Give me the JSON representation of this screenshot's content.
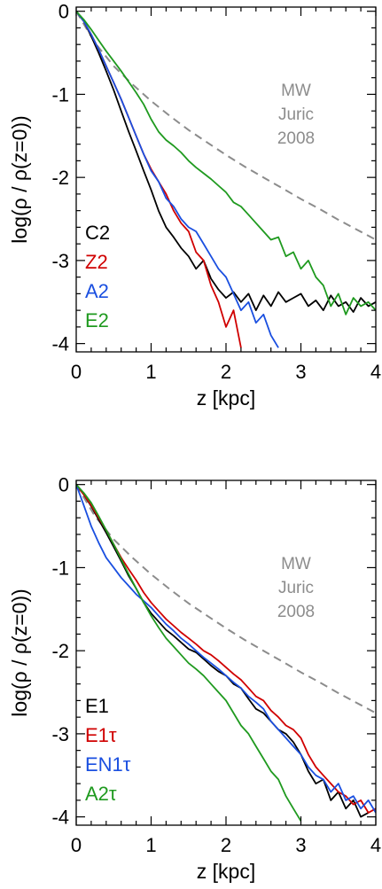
{
  "chart_data": [
    {
      "type": "line",
      "xlabel": "z [kpc]",
      "ylabel": "log(ρ / ρ(z=0))",
      "xlim": [
        0,
        4
      ],
      "ylim": [
        -4.1,
        0.05
      ],
      "xticks": [
        "0",
        "1",
        "2",
        "3",
        "4"
      ],
      "yticks": [
        "0",
        "-1",
        "-2",
        "-3",
        "-4"
      ],
      "annotation": [
        "MW",
        "Juric",
        "2008"
      ],
      "reference": {
        "x": [
          0.0,
          0.25,
          0.5,
          0.75,
          1.0,
          1.25,
          1.5,
          1.75,
          2.0,
          2.25,
          2.5,
          2.75,
          3.0,
          3.25,
          3.5,
          3.75,
          4.0
        ],
        "y": [
          0.0,
          -0.38,
          -0.66,
          -0.88,
          -1.08,
          -1.26,
          -1.43,
          -1.58,
          -1.73,
          -1.87,
          -2.0,
          -2.13,
          -2.26,
          -2.38,
          -2.51,
          -2.63,
          -2.75
        ]
      },
      "series": [
        {
          "name": "C2",
          "color": "#000000",
          "x": [
            0.0,
            0.1,
            0.2,
            0.3,
            0.4,
            0.5,
            0.6,
            0.7,
            0.8,
            0.9,
            1.0,
            1.1,
            1.2,
            1.3,
            1.4,
            1.5,
            1.6,
            1.7,
            1.8,
            1.9,
            2.0,
            2.1,
            2.2,
            2.3,
            2.4,
            2.5,
            2.6,
            2.7,
            2.8,
            2.9,
            3.0,
            3.1,
            3.2,
            3.3,
            3.4,
            3.5,
            3.6,
            3.7,
            3.8,
            3.9,
            4.0
          ],
          "y": [
            0.0,
            -0.12,
            -0.3,
            -0.5,
            -0.72,
            -0.95,
            -1.2,
            -1.45,
            -1.68,
            -1.92,
            -2.15,
            -2.4,
            -2.6,
            -2.72,
            -2.85,
            -2.95,
            -3.1,
            -3.0,
            -3.22,
            -3.35,
            -3.45,
            -3.38,
            -3.5,
            -3.4,
            -3.6,
            -3.42,
            -3.55,
            -3.38,
            -3.5,
            -3.45,
            -3.4,
            -3.55,
            -3.48,
            -3.6,
            -3.42,
            -3.55,
            -3.5,
            -3.62,
            -3.45,
            -3.55,
            -3.5
          ]
        },
        {
          "name": "Z2",
          "color": "#d00000",
          "x": [
            0.0,
            0.1,
            0.2,
            0.3,
            0.4,
            0.5,
            0.6,
            0.7,
            0.8,
            0.9,
            1.0,
            1.1,
            1.2,
            1.3,
            1.4,
            1.5,
            1.6,
            1.7,
            1.8,
            1.9,
            2.0,
            2.1,
            2.2
          ],
          "y": [
            0.0,
            -0.12,
            -0.28,
            -0.46,
            -0.66,
            -0.86,
            -1.06,
            -1.28,
            -1.5,
            -1.72,
            -1.9,
            -2.05,
            -2.2,
            -2.4,
            -2.55,
            -2.65,
            -2.9,
            -3.0,
            -3.3,
            -3.5,
            -3.8,
            -3.6,
            -4.05
          ]
        },
        {
          "name": "A2",
          "color": "#1a4fe0",
          "x": [
            0.0,
            0.1,
            0.2,
            0.3,
            0.4,
            0.5,
            0.6,
            0.7,
            0.8,
            0.9,
            1.0,
            1.1,
            1.2,
            1.3,
            1.4,
            1.5,
            1.6,
            1.7,
            1.8,
            1.9,
            2.0,
            2.1,
            2.2,
            2.3,
            2.4,
            2.5,
            2.6,
            2.7
          ],
          "y": [
            0.0,
            -0.12,
            -0.28,
            -0.46,
            -0.66,
            -0.86,
            -1.06,
            -1.28,
            -1.5,
            -1.72,
            -1.92,
            -2.05,
            -2.25,
            -2.35,
            -2.5,
            -2.6,
            -2.65,
            -2.8,
            -2.95,
            -3.1,
            -3.2,
            -3.4,
            -3.6,
            -3.5,
            -3.75,
            -3.65,
            -3.9,
            -4.05
          ]
        },
        {
          "name": "E2",
          "color": "#1f9a1f",
          "x": [
            0.0,
            0.1,
            0.2,
            0.3,
            0.4,
            0.5,
            0.6,
            0.7,
            0.8,
            0.9,
            1.0,
            1.1,
            1.2,
            1.3,
            1.4,
            1.5,
            1.6,
            1.7,
            1.8,
            1.9,
            2.0,
            2.1,
            2.2,
            2.3,
            2.4,
            2.5,
            2.6,
            2.7,
            2.8,
            2.9,
            3.0,
            3.1,
            3.2,
            3.3,
            3.4,
            3.5,
            3.6,
            3.7,
            3.8,
            3.9,
            4.0
          ],
          "y": [
            0.0,
            -0.1,
            -0.22,
            -0.35,
            -0.48,
            -0.6,
            -0.72,
            -0.85,
            -0.98,
            -1.12,
            -1.3,
            -1.45,
            -1.55,
            -1.62,
            -1.7,
            -1.8,
            -1.88,
            -1.95,
            -2.02,
            -2.1,
            -2.18,
            -2.3,
            -2.35,
            -2.45,
            -2.55,
            -2.65,
            -2.75,
            -2.72,
            -2.95,
            -2.9,
            -3.1,
            -3.0,
            -3.2,
            -3.3,
            -3.55,
            -3.4,
            -3.65,
            -3.45,
            -3.55,
            -3.5,
            -3.6
          ]
        }
      ]
    },
    {
      "type": "line",
      "xlabel": "z [kpc]",
      "ylabel": "log(ρ / ρ(z=0))",
      "xlim": [
        0,
        4
      ],
      "ylim": [
        -4.1,
        0.05
      ],
      "xticks": [
        "0",
        "1",
        "2",
        "3",
        "4"
      ],
      "yticks": [
        "0",
        "-1",
        "-2",
        "-3",
        "-4"
      ],
      "annotation": [
        "MW",
        "Juric",
        "2008"
      ],
      "reference": {
        "x": [
          0.0,
          0.25,
          0.5,
          0.75,
          1.0,
          1.25,
          1.5,
          1.75,
          2.0,
          2.25,
          2.5,
          2.75,
          3.0,
          3.25,
          3.5,
          3.75,
          4.0
        ],
        "y": [
          0.0,
          -0.38,
          -0.66,
          -0.88,
          -1.08,
          -1.26,
          -1.43,
          -1.58,
          -1.73,
          -1.87,
          -2.0,
          -2.13,
          -2.26,
          -2.38,
          -2.51,
          -2.63,
          -2.75
        ]
      },
      "series": [
        {
          "name": "E1",
          "color": "#000000",
          "x": [
            0.0,
            0.1,
            0.2,
            0.3,
            0.4,
            0.5,
            0.6,
            0.7,
            0.8,
            0.9,
            1.0,
            1.1,
            1.2,
            1.3,
            1.4,
            1.5,
            1.6,
            1.7,
            1.8,
            1.9,
            2.0,
            2.1,
            2.2,
            2.3,
            2.4,
            2.5,
            2.6,
            2.7,
            2.8,
            2.9,
            3.0,
            3.1,
            3.2,
            3.3,
            3.4,
            3.5,
            3.6,
            3.7,
            3.8,
            3.9
          ],
          "y": [
            0.0,
            -0.12,
            -0.26,
            -0.42,
            -0.58,
            -0.75,
            -0.92,
            -1.1,
            -1.25,
            -1.42,
            -1.55,
            -1.65,
            -1.75,
            -1.82,
            -1.9,
            -1.98,
            -2.02,
            -2.1,
            -2.18,
            -2.25,
            -2.3,
            -2.4,
            -2.45,
            -2.58,
            -2.7,
            -2.75,
            -2.85,
            -2.95,
            -3.0,
            -3.1,
            -3.25,
            -3.45,
            -3.6,
            -3.55,
            -3.8,
            -3.7,
            -3.9,
            -3.8,
            -4.0,
            -3.95
          ]
        },
        {
          "name": "E1τ",
          "color": "#d00000",
          "x": [
            0.0,
            0.1,
            0.2,
            0.3,
            0.4,
            0.5,
            0.6,
            0.7,
            0.8,
            0.9,
            1.0,
            1.1,
            1.2,
            1.3,
            1.4,
            1.5,
            1.6,
            1.7,
            1.8,
            1.9,
            2.0,
            2.1,
            2.2,
            2.3,
            2.4,
            2.5,
            2.6,
            2.7,
            2.8,
            2.9,
            3.0,
            3.1,
            3.2,
            3.3,
            3.4,
            3.5,
            3.6,
            3.7,
            3.8,
            3.9,
            4.0
          ],
          "y": [
            0.0,
            -0.12,
            -0.25,
            -0.4,
            -0.55,
            -0.72,
            -0.88,
            -1.02,
            -1.15,
            -1.3,
            -1.42,
            -1.52,
            -1.62,
            -1.7,
            -1.78,
            -1.85,
            -1.92,
            -2.0,
            -2.05,
            -2.12,
            -2.2,
            -2.28,
            -2.35,
            -2.45,
            -2.55,
            -2.6,
            -2.72,
            -2.8,
            -2.9,
            -2.95,
            -3.05,
            -3.25,
            -3.4,
            -3.5,
            -3.6,
            -3.7,
            -3.75,
            -3.85,
            -3.8,
            -3.95,
            -3.9
          ]
        },
        {
          "name": "EN1τ",
          "color": "#1a4fe0",
          "x": [
            0.0,
            0.1,
            0.2,
            0.3,
            0.4,
            0.5,
            0.6,
            0.7,
            0.8,
            0.9,
            1.0,
            1.1,
            1.2,
            1.3,
            1.4,
            1.5,
            1.6,
            1.7,
            1.8,
            1.9,
            2.0,
            2.1,
            2.2,
            2.3,
            2.4,
            2.5,
            2.6,
            2.7,
            2.8,
            2.9,
            3.0,
            3.1,
            3.2,
            3.3,
            3.4,
            3.5,
            3.6,
            3.7,
            3.8,
            3.9,
            4.0
          ],
          "y": [
            0.0,
            -0.25,
            -0.5,
            -0.7,
            -0.88,
            -1.0,
            -1.12,
            -1.22,
            -1.32,
            -1.4,
            -1.48,
            -1.58,
            -1.68,
            -1.76,
            -1.85,
            -1.92,
            -2.0,
            -2.08,
            -2.15,
            -2.22,
            -2.3,
            -2.38,
            -2.45,
            -2.55,
            -2.62,
            -2.7,
            -2.85,
            -2.95,
            -3.05,
            -3.15,
            -3.25,
            -3.4,
            -3.5,
            -3.55,
            -3.7,
            -3.6,
            -3.8,
            -3.75,
            -3.9,
            -3.8,
            -3.95
          ]
        },
        {
          "name": "A2τ",
          "color": "#1f9a1f",
          "x": [
            0.0,
            0.1,
            0.2,
            0.3,
            0.4,
            0.5,
            0.6,
            0.7,
            0.8,
            0.9,
            1.0,
            1.1,
            1.2,
            1.3,
            1.4,
            1.5,
            1.6,
            1.7,
            1.8,
            1.9,
            2.0,
            2.1,
            2.2,
            2.3,
            2.4,
            2.5,
            2.6,
            2.7,
            2.8,
            2.9,
            3.0
          ],
          "y": [
            0.0,
            -0.1,
            -0.22,
            -0.38,
            -0.55,
            -0.72,
            -0.9,
            -1.08,
            -1.25,
            -1.42,
            -1.58,
            -1.72,
            -1.85,
            -1.95,
            -2.05,
            -2.15,
            -2.22,
            -2.3,
            -2.4,
            -2.5,
            -2.6,
            -2.75,
            -2.9,
            -3.0,
            -3.15,
            -3.3,
            -3.45,
            -3.55,
            -3.75,
            -3.9,
            -4.05
          ]
        }
      ]
    }
  ]
}
